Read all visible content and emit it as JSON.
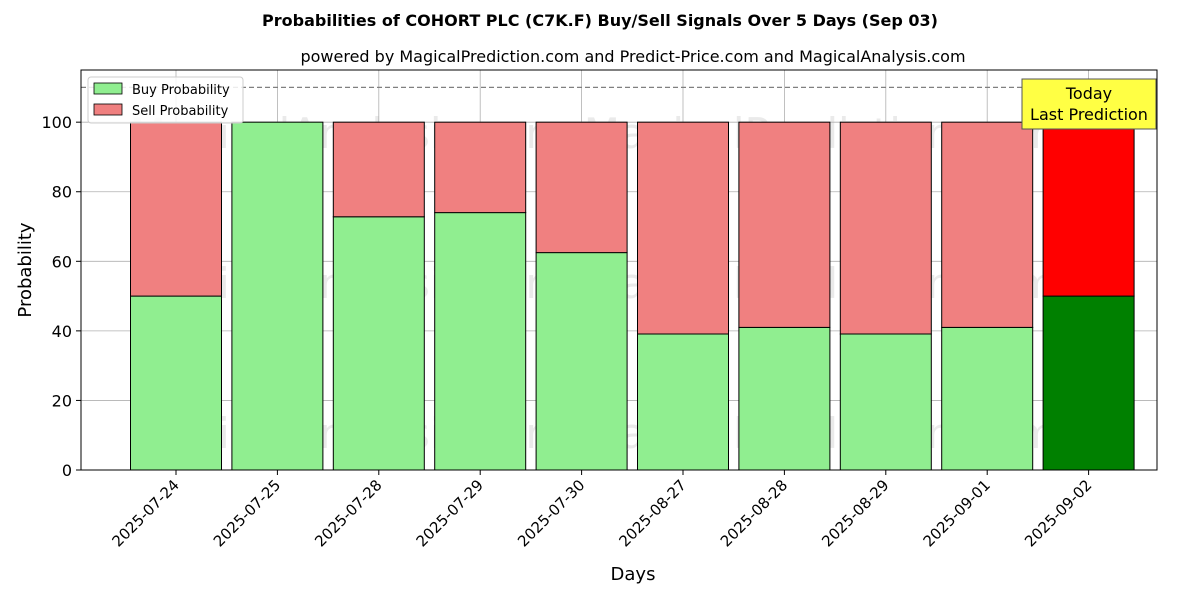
{
  "chart_data": {
    "type": "bar",
    "stacked": true,
    "title": "Probabilities of COHORT PLC (C7K.F) Buy/Sell Signals Over 5 Days (Sep 03)",
    "subtitle": "powered by MagicalPrediction.com and Predict-Price.com and MagicalAnalysis.com",
    "xlabel": "Days",
    "ylabel": "Probability",
    "ylim": [
      0,
      115
    ],
    "yticks": [
      0,
      20,
      40,
      60,
      80,
      100
    ],
    "grid": true,
    "legend_position": "top-left",
    "categories": [
      "2025-07-24",
      "2025-07-25",
      "2025-07-28",
      "2025-07-29",
      "2025-07-30",
      "2025-08-27",
      "2025-08-28",
      "2025-08-29",
      "2025-09-01",
      "2025-09-02"
    ],
    "series": [
      {
        "name": "Buy Probability",
        "values": [
          50,
          100,
          72.8,
          74,
          62.5,
          39.1,
          41,
          39.1,
          41,
          50
        ]
      },
      {
        "name": "Sell Probability",
        "values": [
          50,
          0,
          27.2,
          26,
          37.5,
          60.9,
          59,
          60.9,
          59,
          50
        ]
      }
    ],
    "colors": {
      "buy": "#90ee90",
      "sell": "#f08080",
      "buy_highlight": "#008000",
      "sell_highlight": "#ff0000",
      "annotation_bg": "#ffff44"
    },
    "reference_line": 110,
    "annotation": {
      "line1": "Today",
      "line2": "Last Prediction"
    },
    "watermarks": [
      "MagicalAnalysis.com",
      "MagicalPrediction.com"
    ]
  }
}
